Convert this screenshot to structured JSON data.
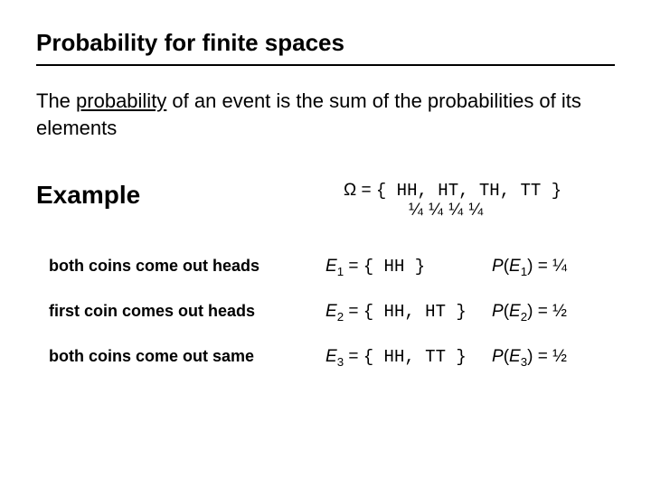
{
  "title": "Probability for finite spaces",
  "intro_pre": "The ",
  "intro_underlined": "probability",
  "intro_post": " of an event is the sum of the probabilities of its elements",
  "example_label": "Example",
  "omega_symbol": "Ω",
  "omega_outcomes": "{ HH, HT, TH, TT }",
  "omega_probs": "¼   ¼   ¼   ¼",
  "events": [
    {
      "desc": "both coins come out heads",
      "e_label": "E",
      "e_sub": "1",
      "set": "{ HH }",
      "p_label": "P",
      "p_arg_sub": "1",
      "p_val": "¼"
    },
    {
      "desc": "first coin comes out heads",
      "e_label": "E",
      "e_sub": "2",
      "set": "{ HH, HT }",
      "p_label": "P",
      "p_arg_sub": "2",
      "p_val": "½"
    },
    {
      "desc": "both coins come out same",
      "e_label": "E",
      "e_sub": "3",
      "set": "{ HH, TT }",
      "p_label": "P",
      "p_arg_sub": "3",
      "p_val": "½"
    }
  ],
  "colors": {
    "text": "#000000",
    "background": "#ffffff",
    "rule": "#000000"
  },
  "typography": {
    "title_fontsize": 26,
    "intro_fontsize": 22,
    "example_fontsize": 28,
    "body_fontsize": 19,
    "desc_fontsize": 18,
    "font_family": "Arial",
    "mono_family": "Courier New"
  }
}
